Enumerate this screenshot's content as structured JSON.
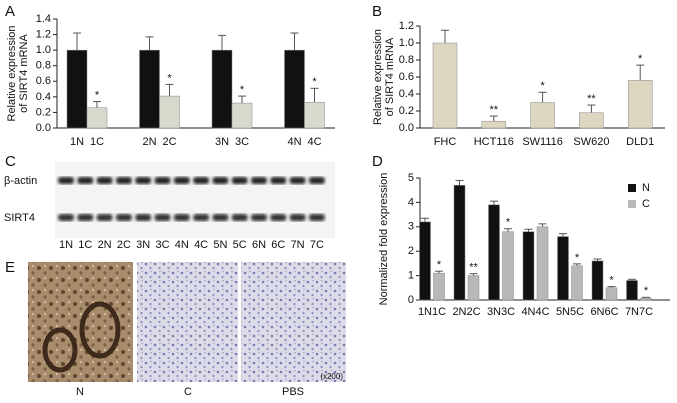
{
  "chart_data": [
    {
      "type": "bar",
      "ylabel": [
        "Relative expression",
        "of SIRT4 mRNA"
      ],
      "categories": [
        "1N",
        "1C",
        "2N",
        "2C",
        "3N",
        "3C",
        "4N",
        "4C"
      ],
      "values": [
        1.0,
        0.26,
        1.0,
        0.41,
        1.0,
        0.32,
        1.0,
        0.33
      ],
      "errors": [
        0.22,
        0.08,
        0.17,
        0.15,
        0.19,
        0.09,
        0.22,
        0.18
      ],
      "annotations": [
        null,
        "*",
        null,
        "*",
        null,
        "*",
        null,
        "*"
      ],
      "colors": [
        "#111111",
        "#d9d8cc",
        "#111111",
        "#d9d8cc",
        "#111111",
        "#d9d8cc",
        "#111111",
        "#d9d8cc"
      ],
      "ylim": [
        0,
        1.4
      ],
      "yticks": [
        {
          "value": 0,
          "label": "0.0"
        },
        0.2,
        0.4,
        0.6,
        0.8,
        {
          "value": 1,
          "label": "1.0"
        },
        1.2,
        1.4
      ]
    },
    {
      "type": "bar",
      "ylabel": [
        "Relative expression",
        "of SIRT4 mRNA"
      ],
      "categories": [
        "FHC",
        "HCT116",
        "SW1116",
        "SW620",
        "DLD1"
      ],
      "values": [
        1.0,
        0.08,
        0.3,
        0.18,
        0.56
      ],
      "errors": [
        0.15,
        0.06,
        0.12,
        0.09,
        0.18
      ],
      "annotations": [
        null,
        "**",
        "*",
        "**",
        "*"
      ],
      "colors": [
        "#ddd7c2",
        "#ddd7c2",
        "#ddd7c2",
        "#ddd7c2",
        "#ddd7c2"
      ],
      "ylim": [
        0,
        1.2
      ],
      "yticks": [
        {
          "value": 0,
          "label": "0.0"
        },
        0.2,
        0.4,
        0.6,
        0.8,
        {
          "value": 1,
          "label": "1.0"
        },
        1.2
      ]
    },
    {
      "type": "grouped_bar",
      "ylabel": [
        "Normalized fold expression"
      ],
      "categories": [
        "1N1C",
        "2N2C",
        "3N3C",
        "4N4C",
        "5N5C",
        "6N6C",
        "7N7C"
      ],
      "series": [
        {
          "name": "N",
          "color": "#111111",
          "values": [
            3.2,
            4.7,
            3.9,
            2.8,
            2.6,
            1.6,
            0.8
          ],
          "errors": [
            0.15,
            0.2,
            0.15,
            0.1,
            0.12,
            0.08,
            0.05
          ],
          "annotations": [
            null,
            null,
            null,
            null,
            null,
            null,
            null
          ]
        },
        {
          "name": "C",
          "color": "#b8b8b8",
          "values": [
            1.1,
            1.0,
            2.8,
            3.0,
            1.4,
            0.5,
            0.08
          ],
          "errors": [
            0.08,
            0.08,
            0.12,
            0.12,
            0.08,
            0.05,
            0.03
          ],
          "annotations": [
            "*",
            "**",
            "*",
            null,
            "*",
            "*",
            "*"
          ]
        }
      ],
      "ylim": [
        0,
        5
      ],
      "yticks": [
        0,
        1,
        2,
        3,
        4,
        5
      ],
      "legend": "upper right"
    }
  ],
  "panel_labels": [
    "A",
    "B",
    "C",
    "D",
    "E"
  ],
  "blot": {
    "rows": [
      "β-actin",
      "SIRT4"
    ],
    "lanes": [
      "1N",
      "1C",
      "2N",
      "2C",
      "3N",
      "3C",
      "4N",
      "4C",
      "5N",
      "5C",
      "6N",
      "6C",
      "7N",
      "7C"
    ]
  },
  "ihc": {
    "labels": [
      "N",
      "C",
      "PBS"
    ],
    "magnification": "(x200)"
  }
}
